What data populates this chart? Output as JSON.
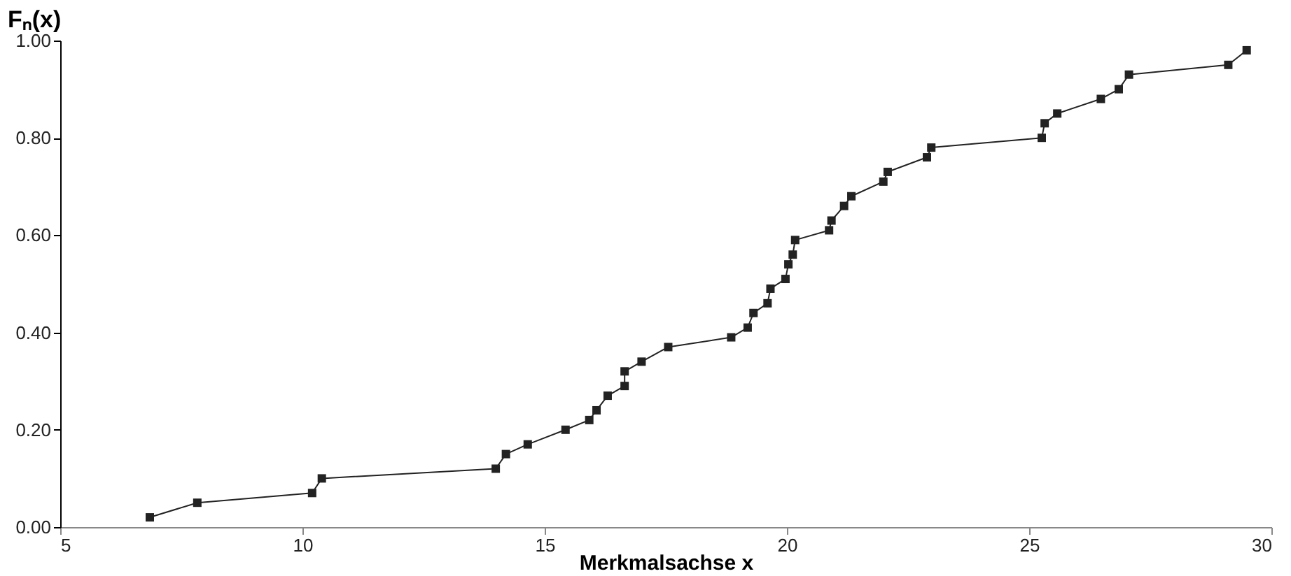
{
  "chart_data": {
    "type": "line",
    "xlabel": "Merkmalsachse x",
    "ylabel": "Fₙ(x)",
    "x": [
      6.85,
      7.83,
      10.2,
      10.4,
      13.99,
      14.2,
      14.65,
      15.43,
      15.92,
      16.07,
      16.3,
      16.65,
      16.65,
      17.0,
      17.55,
      18.85,
      19.19,
      19.31,
      19.6,
      19.66,
      19.97,
      20.03,
      20.12,
      20.17,
      20.87,
      20.92,
      21.18,
      21.33,
      21.99,
      22.08,
      22.89,
      22.98,
      25.26,
      25.32,
      25.58,
      26.48,
      26.85,
      27.06,
      29.11,
      29.49
    ],
    "series": [
      {
        "color": "#222222",
        "values": [
          0.02,
          0.05,
          0.07,
          0.1,
          0.12,
          0.15,
          0.17,
          0.2,
          0.22,
          0.24,
          0.27,
          0.29,
          0.32,
          0.34,
          0.37,
          0.39,
          0.41,
          0.44,
          0.46,
          0.49,
          0.51,
          0.54,
          0.56,
          0.59,
          0.61,
          0.63,
          0.66,
          0.68,
          0.71,
          0.73,
          0.76,
          0.78,
          0.8,
          0.83,
          0.85,
          0.88,
          0.9,
          0.93,
          0.95,
          0.98
        ]
      }
    ],
    "xlim": [
      5,
      30
    ],
    "xticks": [
      5,
      10,
      15,
      20,
      25,
      30
    ],
    "ylim": [
      0,
      1
    ],
    "yticks": [
      {
        "value": 0,
        "label": "0.00"
      },
      {
        "value": 0.2,
        "label": "0.20"
      },
      {
        "value": 0.4,
        "label": "0.40"
      },
      {
        "value": 0.6,
        "label": "0.60"
      },
      {
        "value": 0.8,
        "label": "0.80"
      },
      {
        "value": 1,
        "label": "1.00"
      }
    ],
    "marker": "square",
    "line_style": "solid",
    "grid": false
  }
}
